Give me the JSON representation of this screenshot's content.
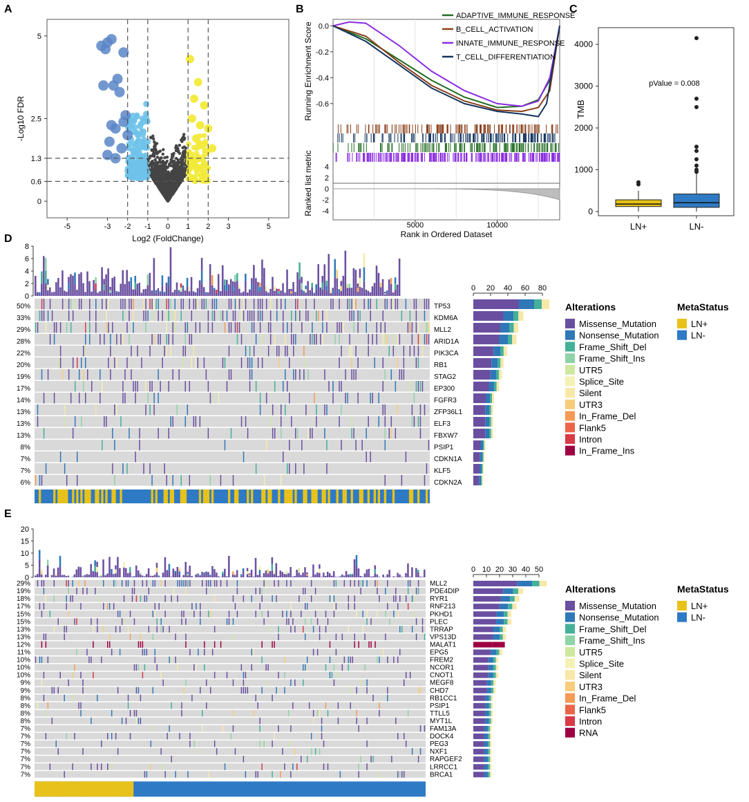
{
  "panels": {
    "A": {
      "label": "A"
    },
    "B": {
      "label": "B"
    },
    "C": {
      "label": "C"
    },
    "D": {
      "label": "D"
    },
    "E": {
      "label": "E"
    }
  },
  "colors": {
    "Missense_Mutation": "#6a4fa0",
    "Nonsense_Mutation": "#2f78b8",
    "Frame_Shift_Del": "#45b09a",
    "Frame_Shift_Ins": "#8fd3a8",
    "UTR5": "#cfe8a0",
    "Splice_Site": "#f4f1b4",
    "Silent": "#f8e8a8",
    "UTR3": "#f8cc7a",
    "In_Frame_Del": "#f59a55",
    "Flank5": "#eb6648",
    "Intron": "#d83a48",
    "In_Frame_Ins": "#9e0142",
    "RNA": "#9e0142",
    "LNpos": "#e8c21a",
    "LNneg": "#2f7ac4",
    "up": "#f2ea3a",
    "down_light": "#6fc3ea",
    "down_dark": "#5b86c8",
    "ns": "#444444"
  },
  "chart_data": [
    {
      "id": "A",
      "type": "scatter",
      "title": "",
      "xlabel": "Log2 (FoldChange)",
      "ylabel": "-Log10 FDR",
      "xlim": [
        -6,
        6
      ],
      "ylim": [
        -0.5,
        5.5
      ],
      "xticks": [
        -5,
        -3,
        -2,
        -1,
        0,
        1,
        2,
        3,
        5
      ],
      "yticks": [
        0,
        0.6,
        1.3,
        2.5,
        5
      ],
      "ytick_labels": [
        "0",
        "0.6",
        "1.3",
        "2.5",
        "5"
      ],
      "vlines": [
        -2,
        -1,
        1,
        2
      ],
      "hlines": [
        0.6,
        1.3
      ],
      "highlight_down": [
        [
          -3.3,
          4.7
        ],
        [
          -3.0,
          4.8
        ],
        [
          -2.8,
          4.9
        ],
        [
          -3.1,
          4.6
        ],
        [
          -2.2,
          4.5
        ],
        [
          -2.5,
          3.7
        ],
        [
          -3.2,
          3.5
        ],
        [
          -2.7,
          3.5
        ],
        [
          -2.4,
          3.3
        ],
        [
          -2.1,
          2.6
        ],
        [
          -2.6,
          2.2
        ],
        [
          -2.0,
          2.0
        ],
        [
          -2.9,
          1.8
        ],
        [
          -2.3,
          1.6
        ],
        [
          -3.0,
          1.4
        ],
        [
          -2.6,
          1.3
        ],
        [
          -2.2,
          2.4
        ],
        [
          -2.8,
          2.3
        ]
      ],
      "highlight_up": [
        [
          1.1,
          4.3
        ],
        [
          1.5,
          3.6
        ],
        [
          1.3,
          3.1
        ],
        [
          1.8,
          2.9
        ],
        [
          1.2,
          2.5
        ],
        [
          1.6,
          2.3
        ],
        [
          2.0,
          2.2
        ],
        [
          1.4,
          1.9
        ],
        [
          1.7,
          1.7
        ],
        [
          2.2,
          1.6
        ],
        [
          1.1,
          1.4
        ],
        [
          1.5,
          1.3
        ],
        [
          1.9,
          1.5
        ],
        [
          1.3,
          1.2
        ]
      ]
    },
    {
      "id": "B",
      "type": "line",
      "xlabel": "Rank in Ordered Dataset",
      "ylabel": "Running Enrichment Score",
      "ylabel2": "Ranked list metric",
      "xlim": [
        0,
        13800
      ],
      "xticks": [
        5000,
        10000
      ],
      "ylim": [
        -0.75,
        0.05
      ],
      "yticks": [
        0.0,
        -0.2,
        -0.4,
        -0.6
      ],
      "ytick_labels": [
        "0.0",
        "-0.2",
        "-0.4",
        "-0.6"
      ],
      "metric_yticks": [
        "4",
        "2",
        "0",
        "-2",
        "-4"
      ],
      "series": [
        {
          "name": "ADAPTIVE_IMMUNE_RESPONSE",
          "color": "#1f6b1f",
          "x": [
            0,
            1000,
            2000,
            4000,
            6000,
            8000,
            10000,
            11500,
            12500,
            13200,
            13800
          ],
          "values": [
            0,
            -0.05,
            -0.1,
            -0.26,
            -0.42,
            -0.55,
            -0.63,
            -0.62,
            -0.57,
            -0.42,
            0.0
          ]
        },
        {
          "name": "B_CELL_ACTIVATION",
          "color": "#8a3f1a",
          "x": [
            0,
            1000,
            2000,
            4000,
            6000,
            8000,
            10000,
            11500,
            12500,
            13200,
            13800
          ],
          "values": [
            0,
            -0.04,
            -0.08,
            -0.28,
            -0.46,
            -0.58,
            -0.65,
            -0.66,
            -0.63,
            -0.5,
            0.0
          ]
        },
        {
          "name": "INNATE_IMMUNE_RESPONSE",
          "color": "#8a2be2",
          "x": [
            0,
            1000,
            2000,
            4000,
            6000,
            8000,
            10000,
            11500,
            12500,
            13200,
            13800
          ],
          "values": [
            0,
            0.03,
            0.02,
            -0.15,
            -0.35,
            -0.5,
            -0.6,
            -0.62,
            -0.58,
            -0.4,
            0.0
          ]
        },
        {
          "name": "T_CELL_DIFFERENTIATION",
          "color": "#12335e",
          "x": [
            0,
            1000,
            2000,
            4000,
            6000,
            8000,
            10000,
            11500,
            12500,
            13000,
            13800
          ],
          "values": [
            0,
            -0.06,
            -0.12,
            -0.3,
            -0.48,
            -0.6,
            -0.66,
            -0.68,
            -0.7,
            -0.6,
            0.0
          ]
        }
      ]
    },
    {
      "id": "C",
      "type": "box",
      "xlabel": "",
      "ylabel": "TMB",
      "ylim": [
        -100,
        4400
      ],
      "yticks": [
        0,
        1000,
        2000,
        3000,
        4000
      ],
      "categories": [
        "LN+",
        "LN-"
      ],
      "annotation": "pValue = 0.008",
      "boxes": [
        {
          "name": "LN+",
          "q1": 120,
          "median": 180,
          "q3": 280,
          "lo": 0,
          "hi": 500,
          "outliers": [
            650,
            700
          ]
        },
        {
          "name": "LN-",
          "q1": 100,
          "median": 210,
          "q3": 420,
          "lo": 0,
          "hi": 900,
          "outliers": [
            950,
            1000,
            1100,
            1250,
            1450,
            1550,
            2500,
            2700,
            4150
          ]
        }
      ]
    },
    {
      "id": "D",
      "type": "oncoplot",
      "tmb_yticks": [
        0,
        2,
        4,
        6,
        8
      ],
      "count_xticks": [
        0,
        20,
        40,
        60,
        80
      ],
      "genes": [
        "TP53",
        "KDM6A",
        "MLL2",
        "ARID1A",
        "PIK3CA",
        "RB1",
        "STAG2",
        "EP300",
        "FGFR3",
        "ZFP36L1",
        "ELF3",
        "FBXW7",
        "PSIP1",
        "CDKN1A",
        "KLF5",
        "CDKN2A"
      ],
      "percents": [
        "50%",
        "33%",
        "29%",
        "28%",
        "22%",
        "20%",
        "19%",
        "17%",
        "14%",
        "13%",
        "13%",
        "13%",
        "8%",
        "7%",
        "7%",
        "6%"
      ],
      "counts": [
        88,
        58,
        52,
        50,
        39,
        35,
        33,
        30,
        24,
        23,
        23,
        23,
        14,
        13,
        12,
        11
      ],
      "legend_title": "Alterations",
      "legend": [
        "Missense_Mutation",
        "Nonsense_Mutation",
        "Frame_Shift_Del",
        "Frame_Shift_Ins",
        "UTR5",
        "Splice_Site",
        "Silent",
        "UTR3",
        "In_Frame_Del",
        "Flank5",
        "Intron",
        "In_Frame_Ins"
      ],
      "meta_title": "MetaStatus",
      "meta_legend": [
        "LN+",
        "LN-"
      ]
    },
    {
      "id": "E",
      "type": "oncoplot",
      "tmb_yticks": [
        0,
        5,
        10,
        15,
        20
      ],
      "count_xticks": [
        0,
        10,
        20,
        30,
        40,
        50
      ],
      "genes": [
        "MLL2",
        "PDE4DIP",
        "RYR1",
        "RNF213",
        "PKHD1",
        "PLEC",
        "TRRAP",
        "VPS13D",
        "MALAT1",
        "EPG5",
        "FREM2",
        "NCOR1",
        "CNOT1",
        "MEGF8",
        "CHD7",
        "RB1CC1",
        "PSIP1",
        "TTLL5",
        "MYT1L",
        "FAM13A",
        "DOCK4",
        "PEG3",
        "NXF1",
        "RAPGEF2",
        "LRRCC1",
        "BRCA1"
      ],
      "percents": [
        "29%",
        "19%",
        "18%",
        "17%",
        "15%",
        "15%",
        "13%",
        "13%",
        "12%",
        "11%",
        "10%",
        "10%",
        "10%",
        "9%",
        "9%",
        "8%",
        "8%",
        "8%",
        "8%",
        "7%",
        "7%",
        "7%",
        "7%",
        "7%",
        "7%",
        "7%"
      ],
      "counts": [
        56,
        38,
        35,
        33,
        29,
        29,
        25,
        25,
        24,
        22,
        19,
        19,
        19,
        17,
        17,
        15,
        15,
        15,
        15,
        14,
        14,
        14,
        14,
        14,
        14,
        14
      ],
      "legend_title": "Alterations",
      "legend": [
        "Missense_Mutation",
        "Nonsense_Mutation",
        "Frame_Shift_Del",
        "Frame_Shift_Ins",
        "UTR5",
        "Splice_Site",
        "Silent",
        "UTR3",
        "In_Frame_Del",
        "Flank5",
        "Intron",
        "RNA"
      ],
      "meta_title": "MetaStatus",
      "meta_legend": [
        "LN+",
        "LN-"
      ]
    }
  ]
}
